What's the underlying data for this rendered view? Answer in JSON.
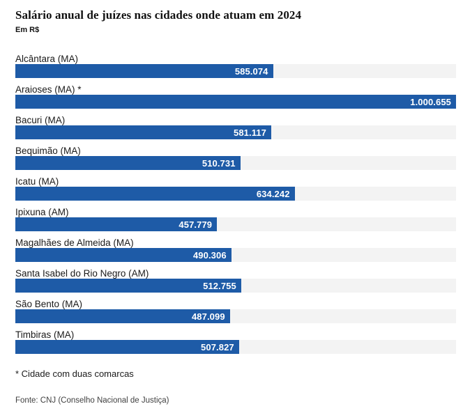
{
  "chart_data": {
    "type": "bar",
    "orientation": "horizontal",
    "title": "Salário anual de juízes nas cidades onde atuam em 2024",
    "subtitle": "Em R$",
    "categories": [
      "Alcântara (MA)",
      "Araioses (MA) *",
      "Bacuri (MA)",
      "Bequimão (MA)",
      "Icatu (MA)",
      "Ipixuna (AM)",
      "Magalhães de Almeida (MA)",
      "Santa Isabel do Rio Negro (AM)",
      "São Bento (MA)",
      "Timbiras (MA)"
    ],
    "values": [
      585074,
      1000655,
      581117,
      510731,
      634242,
      457779,
      490306,
      512755,
      487099,
      507827
    ],
    "value_labels": [
      "585.074",
      "1.000.655",
      "581.117",
      "510.731",
      "634.242",
      "457.779",
      "490.306",
      "512.755",
      "487.099",
      "507.827"
    ],
    "xlim": [
      0,
      1000655
    ],
    "grid": false,
    "legend": "none",
    "bar_color": "#1e5ba7",
    "track_color": "#f3f3f3",
    "value_text_color": "#ffffff",
    "footnote": "* Cidade com duas comarcas",
    "source": "Fonte: CNJ (Conselho Nacional de Justiça)"
  }
}
